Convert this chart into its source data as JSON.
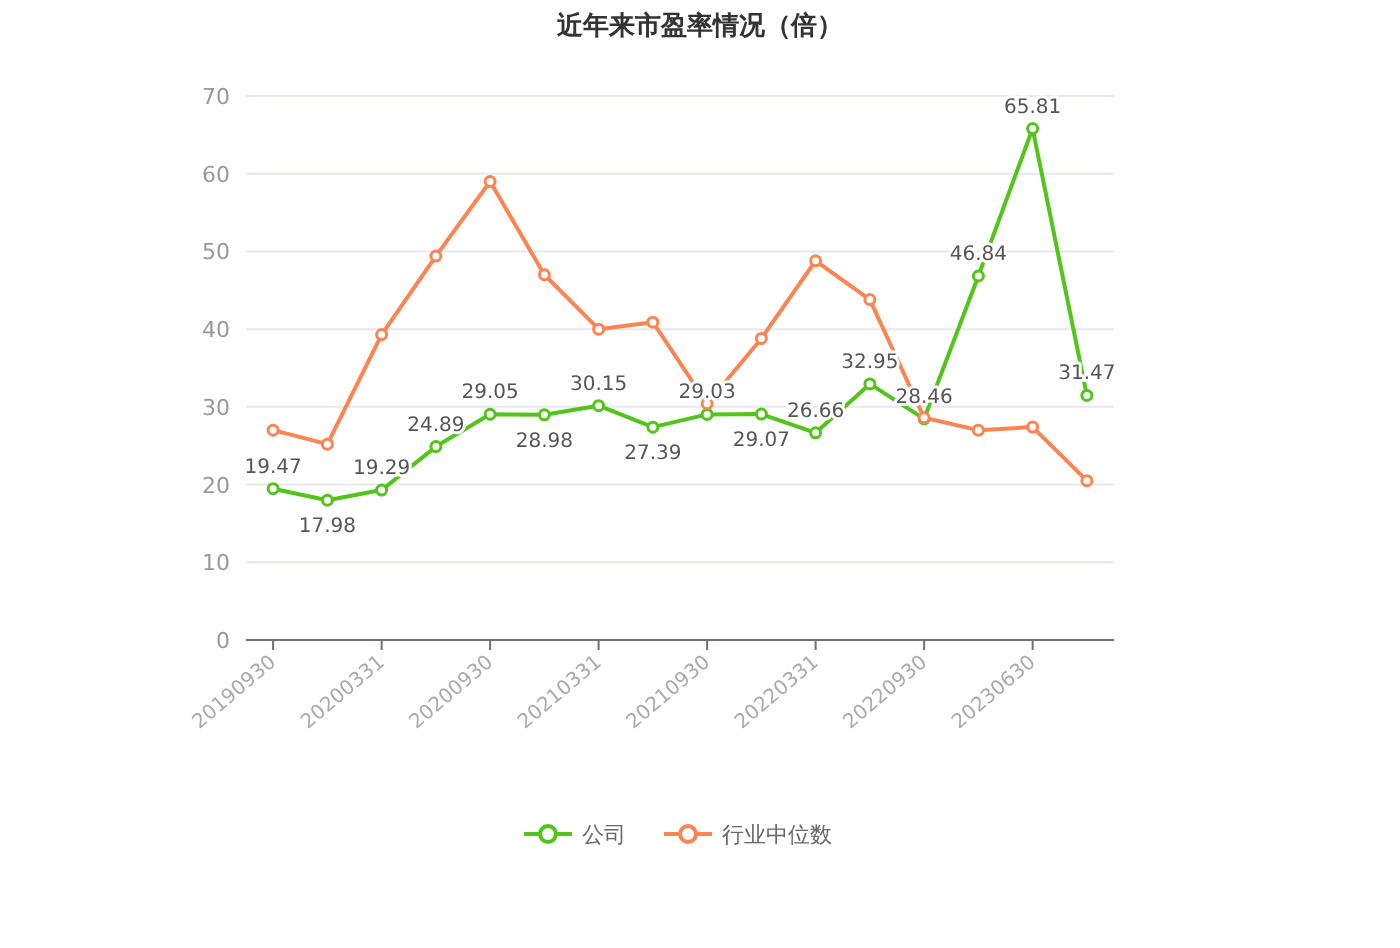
{
  "chart_data": {
    "type": "line",
    "title": "近年来市盈率情况（倍）",
    "categories": [
      "20190930",
      null,
      "20200331",
      null,
      "20200930",
      null,
      "20210331",
      null,
      "20210930",
      null,
      "20220331",
      null,
      "20220930",
      null,
      "20230630",
      null
    ],
    "series": [
      {
        "name": "公司",
        "color": "#52c41a",
        "values": [
          19.47,
          17.98,
          19.29,
          24.89,
          29.05,
          28.98,
          30.15,
          27.39,
          29.03,
          29.07,
          26.66,
          32.95,
          28.46,
          46.84,
          65.81,
          31.47
        ],
        "value_labels": [
          "19.47",
          "17.98",
          "19.29",
          "24.89",
          "29.05",
          "28.98",
          "30.15",
          "27.39",
          "29.03",
          "29.07",
          "26.66",
          "32.95",
          "28.46",
          "46.84",
          "65.81",
          "31.47"
        ]
      },
      {
        "name": "行业中位数",
        "color": "#fa8553",
        "values": [
          27.0,
          25.2,
          39.3,
          49.4,
          59.0,
          47.0,
          40.0,
          40.9,
          30.4,
          38.8,
          48.8,
          43.8,
          28.6,
          27.0,
          27.4,
          20.5
        ]
      }
    ],
    "ylim": [
      0,
      70
    ],
    "yticks": [
      0,
      10,
      20,
      30,
      40,
      50,
      60,
      70
    ],
    "grid": "y",
    "legend": "bottom",
    "marker": "circle",
    "line_style": "solid"
  }
}
